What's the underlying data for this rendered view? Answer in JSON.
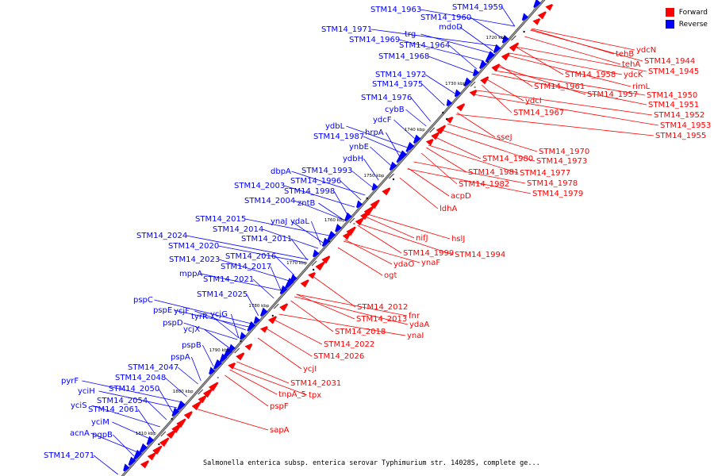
{
  "legend": {
    "forward_label": "Forward",
    "reverse_label": "Reverse",
    "forward_color": "#ff0000",
    "reverse_color": "#0000ff"
  },
  "caption": "Salmonella enterica subsp. enterica serovar Typhimurium str. 14028S, complete ge...",
  "ticks": [
    "1720 kbp",
    "1730 kbp",
    "1740 kbp",
    "1750 kbp",
    "1760 kbp",
    "1770 kbp",
    "1780 kbp",
    "1790 kbp",
    "1800 kbp",
    "1810 kbp"
  ],
  "reverse_genes": [
    "STM14_1963",
    "STM14_1959",
    "STM14_1960",
    "mdoD",
    "STM14_1971",
    "trg",
    "STM14_1969",
    "STM14_1964",
    "STM14_1968",
    "STM14_1972",
    "STM14_1975",
    "STM14_1976",
    "cybB",
    "ydcF",
    "ydbL",
    "hrpA",
    "STM14_1987",
    "ynbE",
    "ydbH",
    "dbpA",
    "STM14_1993",
    "STM14_1996",
    "STM14_2003",
    "STM14_1998",
    "zntB",
    "STM14_2004",
    "ynaJ",
    "ydaL",
    "STM14_2015",
    "STM14_2014",
    "STM14_2011",
    "STM14_2024",
    "STM14_2020",
    "STM14_2016",
    "STM14_2023",
    "STM14_2017",
    "mppA",
    "STM14_2021",
    "STM14_2025",
    "pspC",
    "pspE",
    "ycjF",
    "tyrR",
    "ycjG",
    "pspD",
    "ycjX",
    "pspB",
    "pspA",
    "STM14_2047",
    "STM14_2048",
    "pyrF",
    "STM14_2050",
    "yciH",
    "STM14_2054",
    "yciS",
    "STM14_2061",
    "yciM",
    "acnA",
    "pgpB",
    "STM14_2071"
  ],
  "forward_genes": [
    "ydcN",
    "tehB",
    "tehA",
    "STM14_1944",
    "ydcK",
    "STM14_1945",
    "STM14_1958",
    "rimL",
    "STM14_1961",
    "STM14_1950",
    "STM14_1957",
    "STM14_1951",
    "ydcI",
    "STM14_1952",
    "STM14_1967",
    "STM14_1953",
    "STM14_1955",
    "sseJ",
    "STM14_1970",
    "STM14_1973",
    "STM14_1980",
    "STM14_1981",
    "STM14_1977",
    "STM14_1982",
    "STM14_1978",
    "STM14_1979",
    "acpD",
    "ldhA",
    "nifJ",
    "hslJ",
    "STM14_1999",
    "STM14_1994",
    "ynaF",
    "ydaO",
    "ogt",
    "STM14_2012",
    "fnr",
    "STM14_2013",
    "ydaA",
    "STM14_2018",
    "ynaI",
    "STM14_2022",
    "STM14_2026",
    "ycjI",
    "STM14_2031",
    "tnpA_5",
    "tpx",
    "pspF",
    "sapA"
  ]
}
